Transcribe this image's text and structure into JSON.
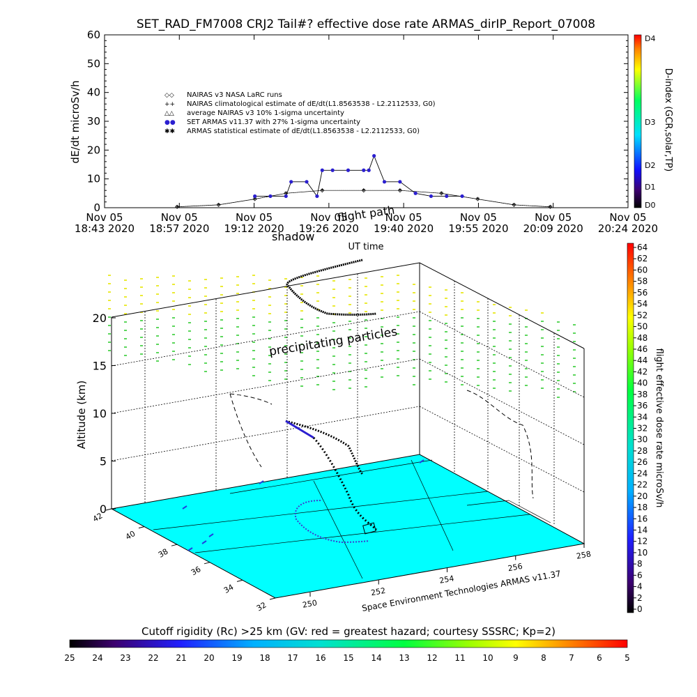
{
  "title": "SET_RAD_FM7008   CRJ2 Tail#? effective dose rate ARMAS_dirIP_Report_07008",
  "top_chart": {
    "ylabel": "dE/dt microSv/h",
    "xlabel": "UT time",
    "y_ticks": [
      "0",
      "10",
      "20",
      "30",
      "40",
      "50",
      "60"
    ],
    "x_tick_dates": [
      "Nov 05",
      "Nov 05",
      "Nov 05",
      "Nov 05",
      "Nov 05",
      "Nov 05",
      "Nov 05",
      "Nov 05"
    ],
    "x_tick_times": [
      "18:43 2020",
      "18:57 2020",
      "19:12 2020",
      "19:26 2020",
      "19:40 2020",
      "19:55 2020",
      "20:09 2020",
      "20:24 2020"
    ],
    "legend": [
      {
        "symbol": "◇◇",
        "text": "NAIRAS v3 NASA LaRC runs"
      },
      {
        "symbol": "++",
        "text": "NAIRAS climatological estimate of dE/dt(L1.8563538 - L2.2112533, G0)"
      },
      {
        "symbol": "△△",
        "text": "average NAIRAS v3 10% 1-sigma uncertainty"
      },
      {
        "symbol": "●●",
        "text": "SET ARMAS v11.37 with 27% 1-sigma uncertainty"
      },
      {
        "symbol": "✱✱",
        "text": "ARMAS statistical estimate of dE/dt(L1.8563538 - L2.2112533, G0)"
      }
    ],
    "right_axis_label": "D-index (GCR,solar,TP)",
    "right_axis_ticks": [
      "D4",
      "D3",
      "D2",
      "D1",
      "D0"
    ],
    "overlay_labels": [
      "shadow",
      "flight path"
    ]
  },
  "chart_data": [
    {
      "type": "scatter",
      "title": "SET_RAD_FM7008   CRJ2 Tail#? effective dose rate ARMAS_dirIP_Report_07008",
      "xlabel": "UT time",
      "ylabel": "dE/dt microSv/h",
      "ylim": [
        0,
        60
      ],
      "xlim": [
        "18:43",
        "20:24"
      ],
      "series": [
        {
          "name": "SET ARMAS v11.37 with 27% 1-sigma uncertainty",
          "x": [
            "19:12",
            "19:15",
            "19:18",
            "19:19",
            "19:22",
            "19:24",
            "19:25",
            "19:27",
            "19:30",
            "19:33",
            "19:34",
            "19:35",
            "19:37",
            "19:40",
            "19:43",
            "19:46",
            "19:49",
            "19:52"
          ],
          "y": [
            4,
            4,
            4,
            9,
            9,
            4,
            13,
            13,
            13,
            13,
            13,
            18,
            9,
            9,
            5,
            4,
            4,
            4
          ]
        },
        {
          "name": "ARMAS statistical estimate of dE/dt(L1.8563538 - L2.2112533, G0)",
          "x": [
            "18:57",
            "19:05",
            "19:12",
            "19:18",
            "19:25",
            "19:33",
            "19:40",
            "19:48",
            "19:55",
            "20:02",
            "20:09"
          ],
          "y": [
            0.3,
            1,
            3,
            5,
            6,
            6,
            6,
            5,
            3,
            1,
            0.3
          ]
        },
        {
          "name": "NAIRAS v3 NASA LaRC runs",
          "x": [
            "18:57",
            "19:05",
            "19:12",
            "19:18",
            "19:25",
            "19:33",
            "19:40",
            "19:48",
            "19:55",
            "20:02",
            "20:09"
          ],
          "y": [
            0.3,
            1,
            3,
            5,
            6,
            6,
            6,
            5,
            3,
            1,
            0.3
          ]
        }
      ]
    },
    {
      "type": "surface3d",
      "zlabel": "Altitude (km)",
      "zlim": [
        0,
        22
      ],
      "z_ticks": [
        0,
        5,
        10,
        15,
        20
      ],
      "lat_ticks": [
        32,
        34,
        36,
        38,
        40,
        42
      ],
      "lon_ticks": [
        250,
        252,
        254,
        256,
        258
      ],
      "annotations": [
        "precipitating particles"
      ]
    }
  ],
  "right_colorbar": {
    "label": "flight effective dose rate microSv/h",
    "ticks": [
      "64",
      "62",
      "60",
      "58",
      "56",
      "54",
      "52",
      "50",
      "48",
      "46",
      "44",
      "42",
      "40",
      "38",
      "36",
      "34",
      "32",
      "30",
      "28",
      "26",
      "24",
      "22",
      "20",
      "18",
      "16",
      "14",
      "12",
      "10",
      "8",
      "6",
      "4",
      "2",
      "0"
    ]
  },
  "bottom_colorbar": {
    "title": "Cutoff rigidity (Rc) >25 km (GV: red = greatest hazard; courtesy SSSRC; Kp=2)",
    "ticks": [
      "25",
      "24",
      "23",
      "22",
      "21",
      "20",
      "19",
      "18",
      "17",
      "16",
      "15",
      "14",
      "13",
      "12",
      "11",
      "10",
      "9",
      "8",
      "7",
      "6",
      "5"
    ]
  },
  "credit": "Space Environment Technologies ARMAS v11.37",
  "colors": {
    "surface": "#00ffff",
    "armas": "#2b1fd0",
    "precip_yellow": "#e6e600",
    "precip_green": "#33cc33"
  }
}
